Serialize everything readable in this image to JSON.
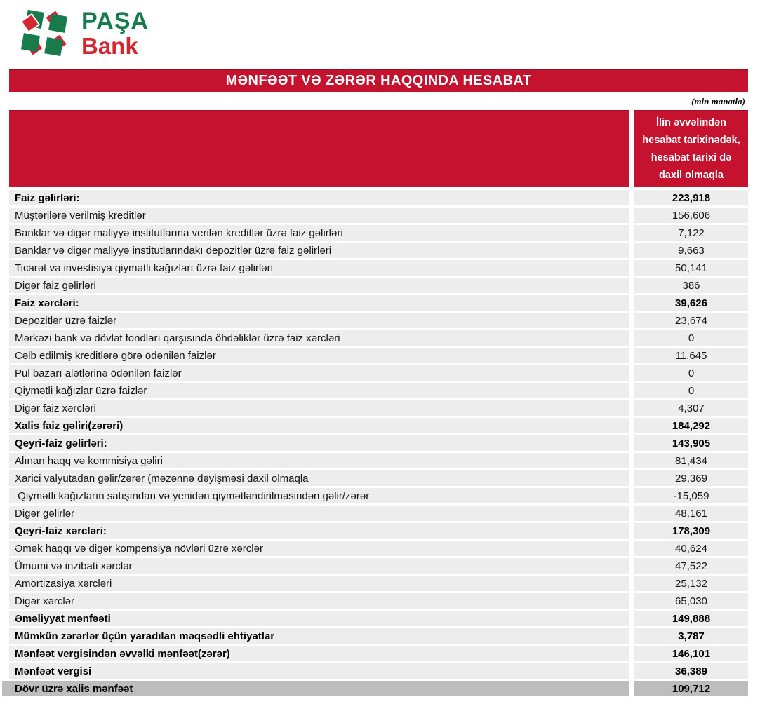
{
  "brand": {
    "name_line1": "PAŞA",
    "name_line2": "Bank",
    "logo_icon": "pinwheel-icon",
    "green": "#177B4C",
    "red": "#D22630"
  },
  "report": {
    "title": "MƏNFƏƏT VƏ ZƏRƏR HAQQINDA HESABAT",
    "unit_note": "(min manatla)",
    "accent_red": "#C4122F",
    "row_bg": "#EDEDED",
    "total_row_bg": "#BDBDBD"
  },
  "table": {
    "period_header": "İlin əvvəlindən\nhesabat tarixinədək,\nhesabat tarixi də\ndaxil olmaqla",
    "rows": [
      {
        "label": "Faiz gəlirləri:",
        "value": "223,918",
        "bold": true,
        "total": false
      },
      {
        "label": "Müştərilərə verilmiş kreditlər",
        "value": "156,606",
        "bold": false,
        "total": false
      },
      {
        "label": "Banklar və digər maliyyə institutlarına verilən kreditlər üzrə faiz gəlirləri",
        "value": "7,122",
        "bold": false,
        "total": false
      },
      {
        "label": "Banklar və digər maliyyə institutlarındakı depozitlər üzrə faiz gəlirləri",
        "value": "9,663",
        "bold": false,
        "total": false
      },
      {
        "label": "Ticarət və investisiya qiymətli kağızları üzrə faiz gəlirləri",
        "value": "50,141",
        "bold": false,
        "total": false
      },
      {
        "label": "Digər faiz gəlirləri",
        "value": "386",
        "bold": false,
        "total": false
      },
      {
        "label": "Faiz xərcləri:",
        "value": "39,626",
        "bold": true,
        "total": false
      },
      {
        "label": "Depozitlər üzrə faizlər",
        "value": "23,674",
        "bold": false,
        "total": false
      },
      {
        "label": "Mərkəzi bank və dövlət fondları qarşısında öhdəliklər üzrə faiz xərcləri",
        "value": "0",
        "bold": false,
        "total": false
      },
      {
        "label": "Cəlb edilmiş kreditlərə görə ödənilən faizlər",
        "value": "11,645",
        "bold": false,
        "total": false
      },
      {
        "label": "Pul bazarı alətlərinə ödənilən faizlər",
        "value": "0",
        "bold": false,
        "total": false
      },
      {
        "label": "Qiymətli kağızlar üzrə faizlər",
        "value": "0",
        "bold": false,
        "total": false
      },
      {
        "label": "Digər faiz xərcləri",
        "value": "4,307",
        "bold": false,
        "total": false
      },
      {
        "label": "Xalis faiz gəliri(zərəri)",
        "value": "184,292",
        "bold": true,
        "total": false
      },
      {
        "label": "Qeyri-faiz gəlirləri:",
        "value": "143,905",
        "bold": true,
        "total": false
      },
      {
        "label": "Alınan haqq və kommisiya gəliri",
        "value": "81,434",
        "bold": false,
        "total": false
      },
      {
        "label": "Xarici valyutadan gəlir/zərər (məzənnə dəyişməsi daxil olmaqla",
        "value": "29,369",
        "bold": false,
        "total": false
      },
      {
        "label": " Qiymətli kağızların satışından və yenidən qiymətləndirilməsindən gəlir/zərər",
        "value": "-15,059",
        "bold": false,
        "total": false
      },
      {
        "label": "Digər gəlirlər",
        "value": "48,161",
        "bold": false,
        "total": false
      },
      {
        "label": "Qeyri-faiz xərcləri:",
        "value": "178,309",
        "bold": true,
        "total": false
      },
      {
        "label": "Əmək haqqı və digər kompensiya növləri üzrə xərclər",
        "value": "40,624",
        "bold": false,
        "total": false
      },
      {
        "label": "Ümumi və inzibati xərclər",
        "value": "47,522",
        "bold": false,
        "total": false
      },
      {
        "label": "Amortizasiya xərcləri",
        "value": "25,132",
        "bold": false,
        "total": false
      },
      {
        "label": "Digər xərclər",
        "value": "65,030",
        "bold": false,
        "total": false
      },
      {
        "label": "Əməliyyat mənfəəti",
        "value": "149,888",
        "bold": true,
        "total": false
      },
      {
        "label": "Mümkün zərərlər üçün yaradılan məqsədli ehtiyatlar",
        "value": "3,787",
        "bold": true,
        "total": false
      },
      {
        "label": "Mənfəət vergisindən əvvəlki mənfəət(zərər)",
        "value": "146,101",
        "bold": true,
        "total": false
      },
      {
        "label": "Mənfəət vergisi",
        "value": "36,389",
        "bold": true,
        "total": false
      },
      {
        "label": "Dövr üzrə xalis mənfəət",
        "value": "109,712",
        "bold": true,
        "total": true
      }
    ]
  }
}
